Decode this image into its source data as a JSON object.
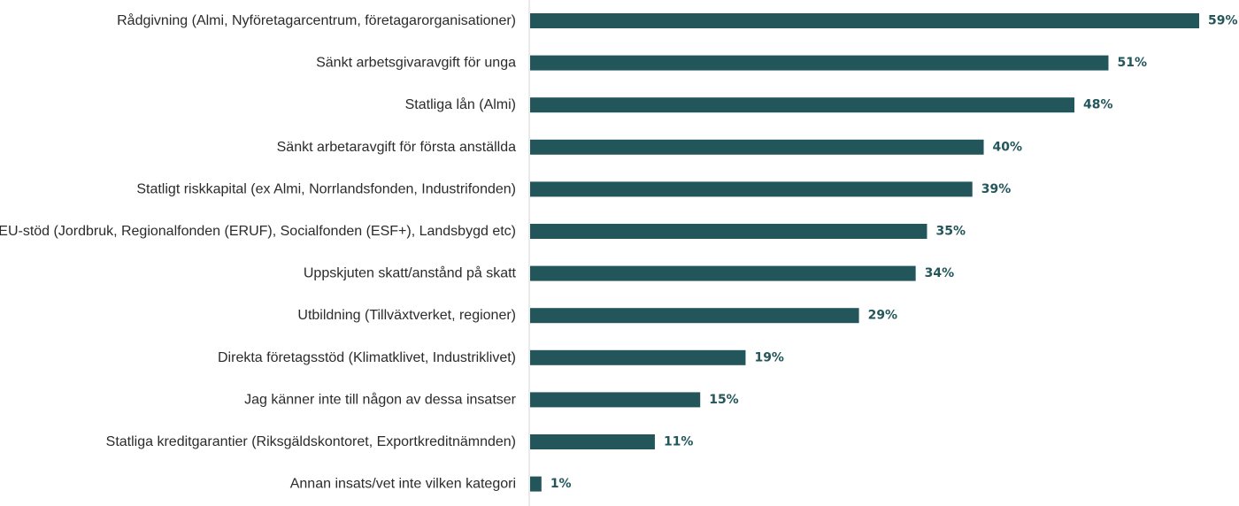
{
  "chart_data": {
    "type": "bar",
    "orientation": "horizontal",
    "categories": [
      "Rådgivning (Almi, Nyföretagarcentrum, företagarorganisationer)",
      "Sänkt arbetsgivaravgift för unga",
      "Statliga lån (Almi)",
      "Sänkt arbetaravgift för första anställda",
      "Statligt riskkapital (ex Almi, Norrlandsfonden, Industrifonden)",
      "EU-stöd (Jordbruk, Regionalfonden (ERUF), Socialfonden (ESF+), Landsbygd etc)",
      "Uppskjuten skatt/anstånd på skatt",
      "Utbildning (Tillväxtverket, regioner)",
      "Direkta företagsstöd (Klimatklivet, Industriklivet)",
      "Jag känner inte till någon av dessa insatser",
      "Statliga kreditgarantier (Riksgäldskontoret, Exportkreditnämnden)",
      "Annan insats/vet inte vilken kategori"
    ],
    "values": [
      59,
      51,
      48,
      40,
      39,
      35,
      34,
      29,
      19,
      15,
      11,
      1
    ],
    "value_labels": [
      "59%",
      "51%",
      "48%",
      "40%",
      "39%",
      "35%",
      "34%",
      "29%",
      "19%",
      "15%",
      "11%",
      "1%"
    ],
    "unit": "%",
    "title": "",
    "xlabel": "",
    "ylabel": "",
    "xlim": [
      0,
      59
    ],
    "grid": false,
    "legend": "none",
    "bar_color": "#23565b",
    "axis_color": "#d4d4d4",
    "label_color": "#2b2b2b"
  }
}
